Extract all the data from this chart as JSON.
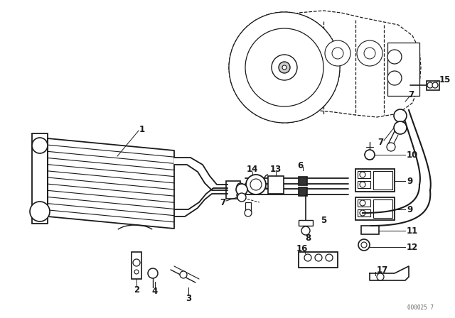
{
  "watermark": "000025 7",
  "background_color": "#ffffff",
  "line_color": "#1a1a1a",
  "fig_width": 6.4,
  "fig_height": 4.48,
  "dpi": 100,
  "xlim": [
    0,
    640
  ],
  "ylim": [
    0,
    448
  ]
}
